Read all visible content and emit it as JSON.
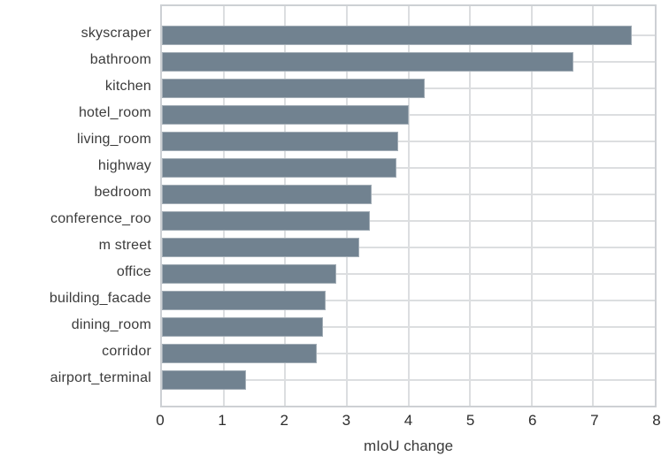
{
  "chart_data": {
    "type": "bar",
    "orientation": "horizontal",
    "title": "",
    "xlabel": "mIoU change",
    "ylabel": "",
    "xlim": [
      0,
      8
    ],
    "x_ticks": [
      0,
      1,
      2,
      3,
      4,
      5,
      6,
      7,
      8
    ],
    "grid": true,
    "legend": false,
    "categories": [
      "skyscraper",
      "bathroom",
      "kitchen",
      "hotel_room",
      "living_room",
      "highway",
      "bedroom",
      "conference_roo",
      "m street",
      "office",
      "building_facade",
      "dining_room",
      "corridor",
      "airport_terminal"
    ],
    "values": [
      7.62,
      6.68,
      4.27,
      4.0,
      3.83,
      3.8,
      3.41,
      3.38,
      3.2,
      2.83,
      2.66,
      2.62,
      2.52,
      1.37
    ],
    "colors": {
      "bar": "#718290",
      "grid": "#dcdee0",
      "plot_border": "#cdd0d4",
      "tick_text": "#2d2d2d",
      "label_text": "#3b3b3b",
      "background": "#ffffff"
    }
  }
}
